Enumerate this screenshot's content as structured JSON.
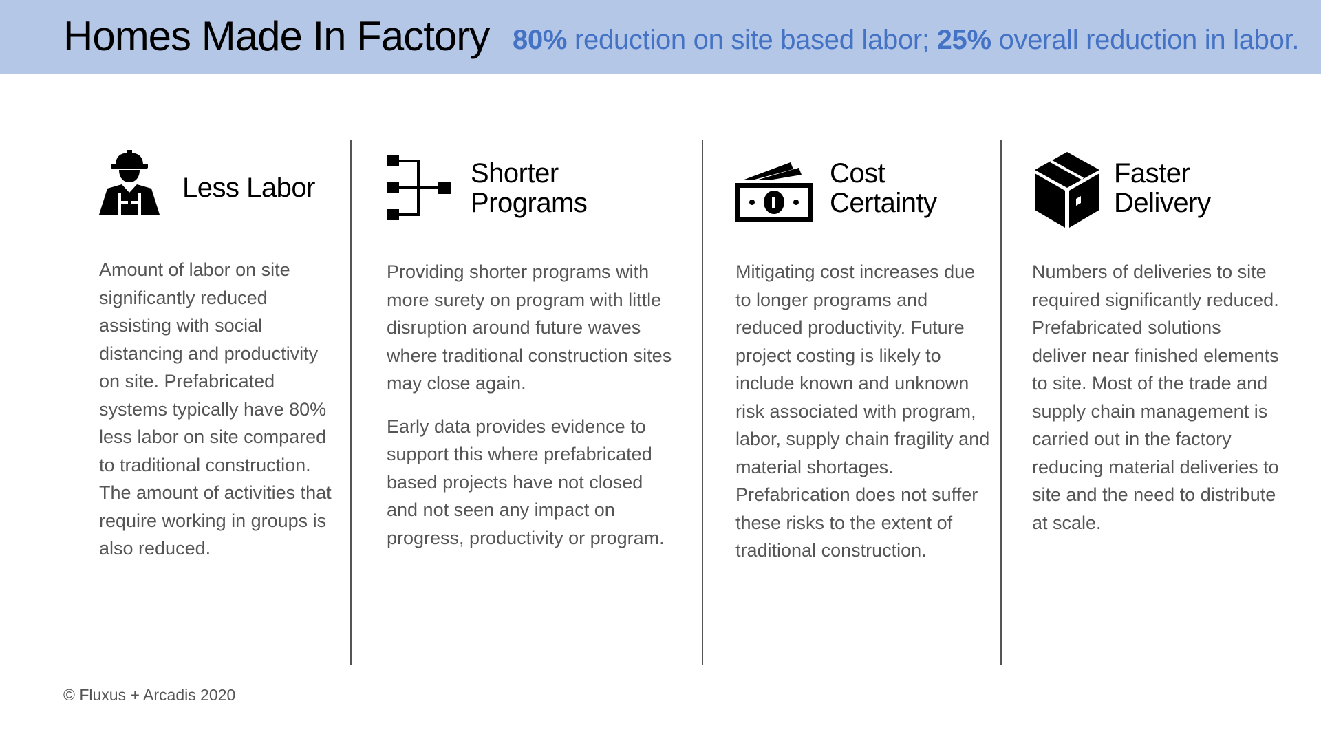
{
  "header": {
    "title": "Homes Made In Factory",
    "tagline": {
      "stat1": "80%",
      "text1": " reduction on site based labor; ",
      "stat2": "25%",
      "text2": " overall reduction in labor."
    },
    "background_color": "#b4c7e7",
    "accent_color": "#4472c4"
  },
  "columns": [
    {
      "icon": "construction-worker-icon",
      "heading": "Less Labor",
      "paragraphs": [
        "Amount of labor on site significantly reduced assisting with social distancing and productivity on site. Prefabricated systems typically have 80% less labor on site compared to traditional construction. The amount of activities that require working in groups is also reduced."
      ]
    },
    {
      "icon": "hierarchy-diagram-icon",
      "heading": "Shorter\nPrograms",
      "paragraphs": [
        "Providing shorter programs with more surety on program with little disruption around future waves where traditional construction sites may close again.",
        "Early data provides evidence to support this where prefabricated based projects have not closed and not seen any impact on progress, productivity or program."
      ]
    },
    {
      "icon": "money-stack-icon",
      "heading": "Cost\nCertainty",
      "paragraphs": [
        "Mitigating cost increases due to longer programs and reduced productivity. Future project costing is likely to include known and unknown risk associated with program, labor, supply chain fragility and material shortages. Prefabrication does not suffer these risks to the extent of traditional construction."
      ]
    },
    {
      "icon": "package-box-icon",
      "heading": "Faster\nDelivery",
      "paragraphs": [
        "Numbers of deliveries to site required significantly reduced. Prefabricated solutions deliver near finished elements to site. Most of the trade and supply chain management is carried out in the factory reducing material deliveries to site and the need to distribute at scale."
      ]
    }
  ],
  "footer": {
    "copyright": "© Fluxus + Arcadis 2020"
  }
}
